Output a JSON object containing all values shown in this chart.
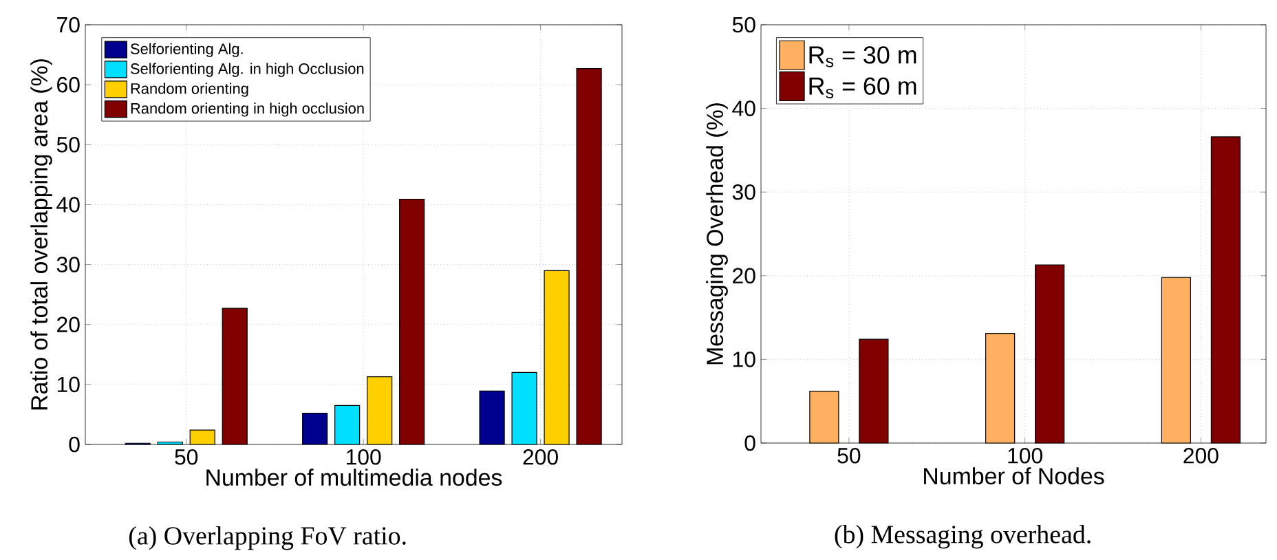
{
  "chart_data": [
    {
      "type": "bar",
      "xlabel": "Number of multimedia nodes",
      "ylabel": "Ratio of total overlapping area (%)",
      "categories": [
        "50",
        "100",
        "200"
      ],
      "series": [
        {
          "name": "Selforienting Alg.",
          "color": "#00008f",
          "values": [
            0.2,
            5.2,
            8.9
          ]
        },
        {
          "name": "Selforienting Alg. in high Occlusion",
          "color": "#00dfff",
          "values": [
            0.4,
            6.5,
            12.0
          ]
        },
        {
          "name": "Random orienting",
          "color": "#ffcf00",
          "values": [
            2.4,
            11.3,
            29.0
          ]
        },
        {
          "name": "Random orienting in high occlusion",
          "color": "#800000",
          "values": [
            22.7,
            40.9,
            62.7
          ]
        }
      ],
      "ylim": [
        0,
        70
      ],
      "yticks": [
        0,
        10,
        20,
        30,
        40,
        50,
        60,
        70
      ],
      "grid": true,
      "legend": "top left",
      "annotations": [
        "(a) Overlapping FoV ratio."
      ]
    },
    {
      "type": "bar",
      "xlabel": "Number of Nodes",
      "ylabel": "Messaging Overhead (%)",
      "categories": [
        "50",
        "100",
        "200"
      ],
      "series": [
        {
          "name": "R$_{s}$ = 30 m",
          "color": "#ffb060",
          "values": [
            6.2,
            13.1,
            19.8
          ]
        },
        {
          "name": "R$_{s}$ = 60 m",
          "color": "#800000",
          "values": [
            12.4,
            21.3,
            36.6
          ]
        }
      ],
      "ylim": [
        0,
        50
      ],
      "yticks": [
        0,
        10,
        20,
        30,
        40,
        50
      ],
      "grid": true,
      "legend": "top left",
      "annotations": [
        "(b) Messaging overhead."
      ]
    }
  ]
}
